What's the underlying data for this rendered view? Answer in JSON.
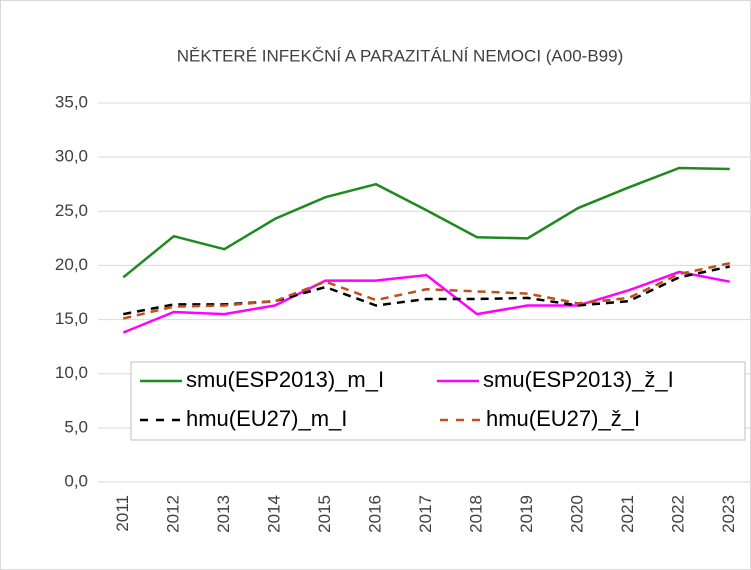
{
  "chart_data": {
    "type": "line",
    "title": "NĚKTERÉ INFEKČNÍ A PARAZITÁLNÍ NEMOCI (A00-B99)",
    "categories": [
      "2011",
      "2012",
      "2013",
      "2014",
      "2015",
      "2016",
      "2017",
      "2018",
      "2019",
      "2020",
      "2021",
      "2022",
      "2023"
    ],
    "series": [
      {
        "name": "smu(ESP2013)_m_I",
        "color": "#1e8a1e",
        "dash": false,
        "values": [
          18.9,
          22.7,
          21.5,
          24.3,
          26.3,
          27.5,
          25.1,
          22.6,
          22.5,
          25.3,
          27.2,
          29.0,
          28.9
        ]
      },
      {
        "name": "smu(ESP2013)_ž_I",
        "color": "#ff00ff",
        "dash": false,
        "values": [
          13.8,
          15.7,
          15.5,
          16.3,
          18.6,
          18.6,
          19.1,
          15.5,
          16.3,
          16.3,
          17.7,
          19.4,
          18.5
        ]
      },
      {
        "name": "hmu(EU27)_m_I",
        "color": "#000000",
        "dash": true,
        "values": [
          15.5,
          16.4,
          16.4,
          16.7,
          18.0,
          16.3,
          16.9,
          16.9,
          17.0,
          16.3,
          16.7,
          18.9,
          19.9
        ]
      },
      {
        "name": "hmu(EU27)_ž_I",
        "color": "#c0501a",
        "dash": true,
        "values": [
          15.1,
          16.2,
          16.3,
          16.7,
          18.5,
          16.8,
          17.8,
          17.6,
          17.4,
          16.5,
          17.0,
          19.2,
          20.2
        ]
      }
    ],
    "ylim": [
      0,
      35
    ],
    "yticks": [
      {
        "value": 0,
        "label": "0,0"
      },
      {
        "value": 5,
        "label": "5,0"
      },
      {
        "value": 10,
        "label": "10,0"
      },
      {
        "value": 15,
        "label": "15,0"
      },
      {
        "value": 20,
        "label": "20,0"
      },
      {
        "value": 25,
        "label": "25,0"
      },
      {
        "value": 30,
        "label": "30,0"
      },
      {
        "value": 35,
        "label": "35,0"
      }
    ],
    "grid": true
  }
}
